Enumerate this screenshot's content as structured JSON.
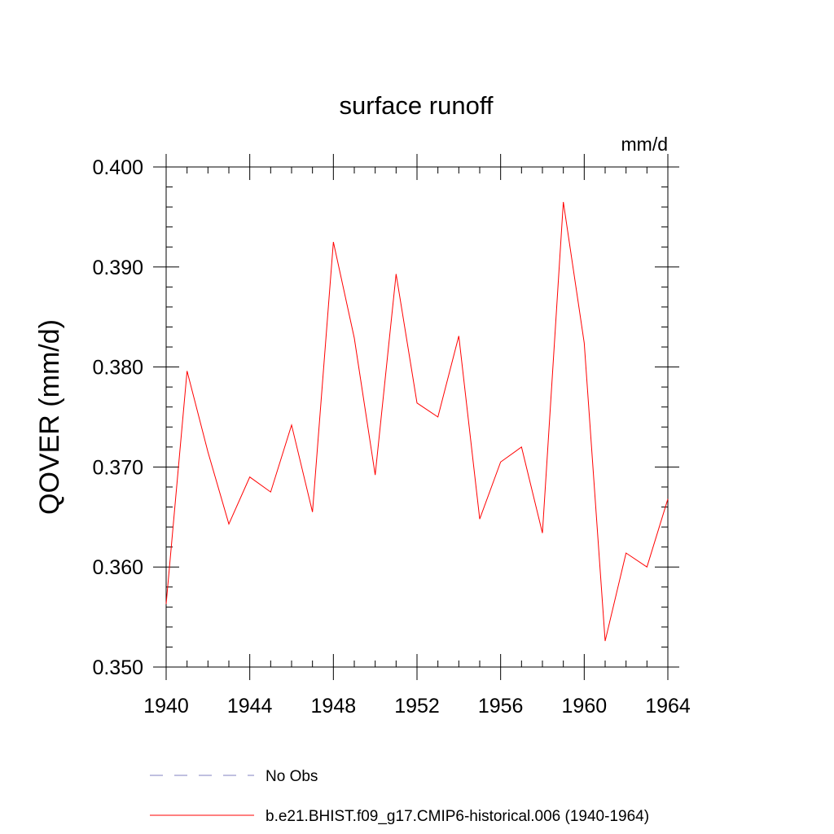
{
  "chart_data": {
    "type": "line",
    "title": "surface runoff",
    "units": "mm/d",
    "ylabel": "QOVER  (mm/d)",
    "xlabel": "",
    "xlim": [
      1940,
      1964
    ],
    "ylim": [
      0.35,
      0.4
    ],
    "x_ticks": [
      1940,
      1944,
      1948,
      1952,
      1956,
      1960,
      1964
    ],
    "y_ticks": [
      "0.350",
      "0.360",
      "0.370",
      "0.380",
      "0.390",
      "0.400"
    ],
    "x": [
      1940,
      1941,
      1942,
      1943,
      1944,
      1945,
      1946,
      1947,
      1948,
      1949,
      1950,
      1951,
      1952,
      1953,
      1954,
      1955,
      1956,
      1957,
      1958,
      1959,
      1960,
      1961,
      1962,
      1963,
      1964
    ],
    "series": [
      {
        "name": "b.e21.BHIST.f09_g17.CMIP6-historical.006 (1940-1964)",
        "color": "#ff0000",
        "values": [
          0.3563,
          0.3796,
          0.3715,
          0.3643,
          0.369,
          0.3675,
          0.3742,
          0.3655,
          0.3925,
          0.3829,
          0.3692,
          0.3893,
          0.3764,
          0.375,
          0.3831,
          0.3648,
          0.3705,
          0.372,
          0.3634,
          0.3965,
          0.3824,
          0.3526,
          0.3614,
          0.36,
          0.3668
        ]
      }
    ],
    "legend": [
      {
        "label": "No Obs",
        "color": "#8080c0",
        "style": "dashed"
      },
      {
        "label": "b.e21.BHIST.f09_g17.CMIP6-historical.006 (1940-1964)",
        "color": "#ff0000",
        "style": "solid"
      }
    ],
    "grid": false,
    "legend_position": "bottom"
  }
}
